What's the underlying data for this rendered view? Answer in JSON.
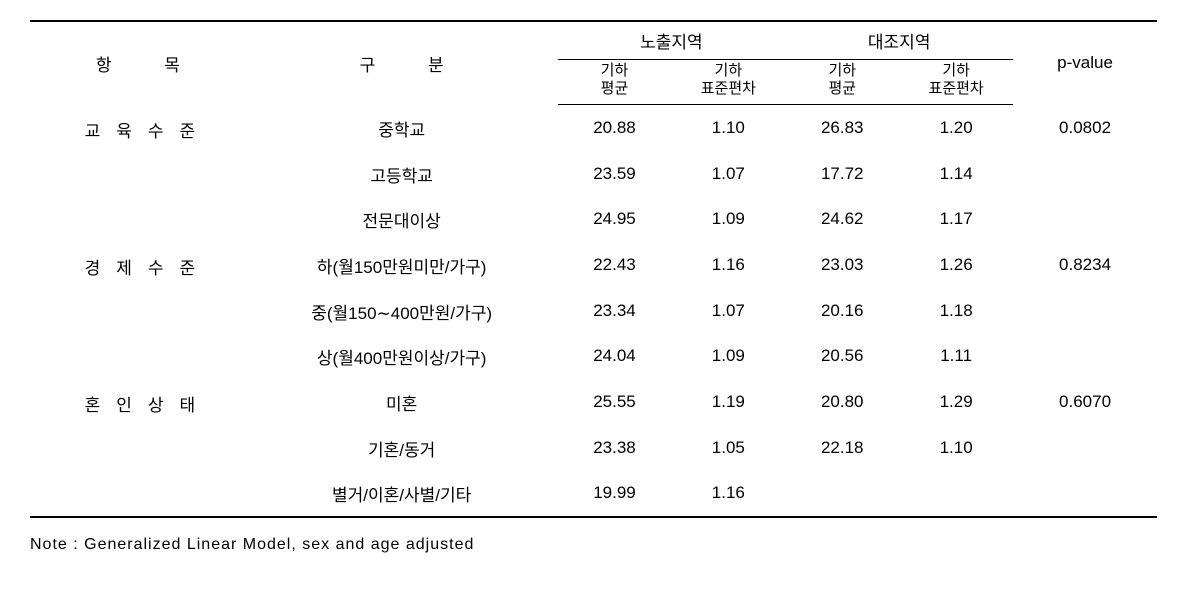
{
  "headers": {
    "category": "항 목",
    "subcategory": "구 분",
    "group_exposed": "노출지역",
    "group_control": "대조지역",
    "geomean_line1": "기하",
    "geomean_line2": "평균",
    "geosd_line1": "기하",
    "geosd_line2": "표준편차",
    "pvalue": "p-value"
  },
  "rows": [
    {
      "category": "교육수준",
      "subcategory": "중학교",
      "exposed_mean": "20.88",
      "exposed_sd": "1.10",
      "control_mean": "26.83",
      "control_sd": "1.20",
      "pvalue": "0.0802"
    },
    {
      "category": "",
      "subcategory": "고등학교",
      "exposed_mean": "23.59",
      "exposed_sd": "1.07",
      "control_mean": "17.72",
      "control_sd": "1.14",
      "pvalue": ""
    },
    {
      "category": "",
      "subcategory": "전문대이상",
      "exposed_mean": "24.95",
      "exposed_sd": "1.09",
      "control_mean": "24.62",
      "control_sd": "1.17",
      "pvalue": ""
    },
    {
      "category": "경제수준",
      "subcategory": "하(월150만원미만/가구)",
      "exposed_mean": "22.43",
      "exposed_sd": "1.16",
      "control_mean": "23.03",
      "control_sd": "1.26",
      "pvalue": "0.8234"
    },
    {
      "category": "",
      "subcategory": "중(월150∼400만원/가구)",
      "exposed_mean": "23.34",
      "exposed_sd": "1.07",
      "control_mean": "20.16",
      "control_sd": "1.18",
      "pvalue": ""
    },
    {
      "category": "",
      "subcategory": "상(월400만원이상/가구)",
      "exposed_mean": "24.04",
      "exposed_sd": "1.09",
      "control_mean": "20.56",
      "control_sd": "1.11",
      "pvalue": ""
    },
    {
      "category": "혼인상태",
      "subcategory": "미혼",
      "exposed_mean": "25.55",
      "exposed_sd": "1.19",
      "control_mean": "20.80",
      "control_sd": "1.29",
      "pvalue": "0.6070"
    },
    {
      "category": "",
      "subcategory": "기혼/동거",
      "exposed_mean": "23.38",
      "exposed_sd": "1.05",
      "control_mean": "22.18",
      "control_sd": "1.10",
      "pvalue": ""
    },
    {
      "category": "",
      "subcategory": "별거/이혼/사별/기타",
      "exposed_mean": "19.99",
      "exposed_sd": "1.16",
      "control_mean": "",
      "control_sd": "",
      "pvalue": ""
    }
  ],
  "note": "Note : Generalized Linear Model, sex and age adjusted"
}
